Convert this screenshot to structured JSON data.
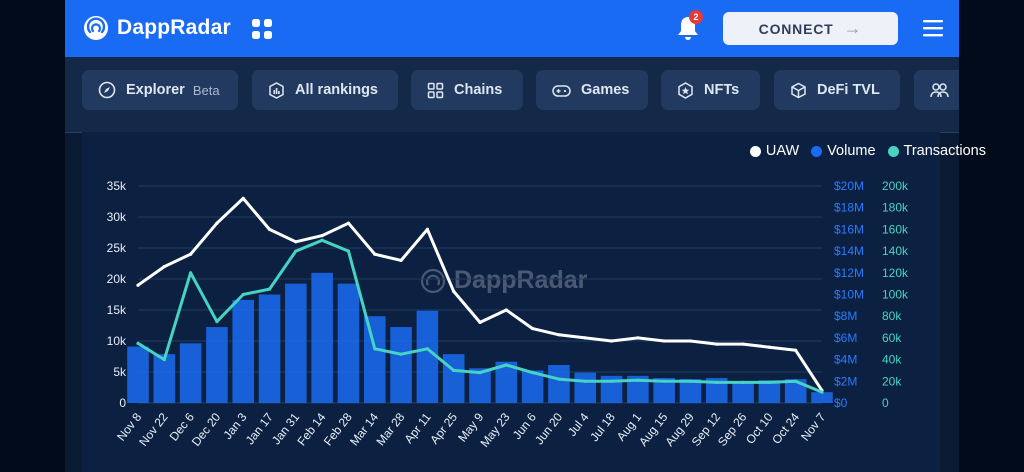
{
  "header": {
    "brand": "DappRadar",
    "notification_count": "2",
    "connect_label": "CONNECT",
    "colors": {
      "bar": "#1a6bf3",
      "connect_bg": "#eef2f8",
      "badge": "#e53a3a"
    }
  },
  "nav": {
    "items": [
      {
        "label": "Explorer",
        "tag": "Beta",
        "icon": "compass-icon"
      },
      {
        "label": "All rankings",
        "icon": "rankings-icon"
      },
      {
        "label": "Chains",
        "icon": "chains-icon"
      },
      {
        "label": "Games",
        "icon": "gamepad-icon"
      },
      {
        "label": "NFTs",
        "icon": "nft-icon"
      },
      {
        "label": "DeFi TVL",
        "icon": "cube-icon"
      },
      {
        "label": "",
        "icon": "people-icon"
      }
    ]
  },
  "chart_data": {
    "type": "line",
    "legend": {
      "placement": "top-right",
      "entries": [
        {
          "label": "UAW",
          "color": "#ffffff"
        },
        {
          "label": "Volume",
          "color": "#1a6bf3"
        },
        {
          "label": "Transactions",
          "color": "#46d3c3"
        }
      ]
    },
    "watermark": "DappRadar",
    "x_tick_labels": [
      "Nov 8",
      "Nov 22",
      "Dec 6",
      "Dec 20",
      "Jan 3",
      "Jan 17",
      "Jan 31",
      "Feb 14",
      "Feb 28",
      "Mar 14",
      "Mar 28",
      "Apr 11",
      "Apr 25",
      "May 9",
      "May 23",
      "Jun 6",
      "Jun 20",
      "Jul 4",
      "Jul 18",
      "Aug 1",
      "Aug 15",
      "Aug 29",
      "Sep 12",
      "Sep 26",
      "Oct 10",
      "Oct 24",
      "Nov 7"
    ],
    "axes": {
      "uaw": {
        "ylim": [
          0,
          35000
        ],
        "tick_labels": [
          "0",
          "5k",
          "10k",
          "15k",
          "20k",
          "25k",
          "30k",
          "35k"
        ],
        "color": "#e7eef9"
      },
      "volume": {
        "ylim": [
          0,
          20000000
        ],
        "tick_labels": [
          "$0",
          "$2M",
          "$4M",
          "$6M",
          "$8M",
          "$10M",
          "$12M",
          "$14M",
          "$16M",
          "$18M",
          "$20M"
        ],
        "color": "#2a7bff"
      },
      "transactions": {
        "ylim": [
          0,
          200000
        ],
        "tick_labels": [
          "0",
          "20k",
          "40k",
          "60k",
          "80k",
          "100k",
          "120k",
          "140k",
          "160k",
          "180k",
          "200k"
        ],
        "color": "#46d3c3"
      }
    },
    "grid": true,
    "series": [
      {
        "name": "UAW",
        "axis": "uaw",
        "color": "#ffffff",
        "x": [
          "Nov 8",
          "Nov 22",
          "Dec 6",
          "Dec 20",
          "Jan 3",
          "Jan 17",
          "Jan 31",
          "Feb 14",
          "Feb 28",
          "Mar 14",
          "Mar 28",
          "Apr 11",
          "Apr 25",
          "May 9",
          "May 23",
          "Jun 6",
          "Jun 20",
          "Jul 4",
          "Jul 18",
          "Aug 1",
          "Aug 15",
          "Aug 29",
          "Sep 12",
          "Sep 26",
          "Oct 10",
          "Oct 24",
          "Nov 7"
        ],
        "values": [
          19000,
          22000,
          24000,
          29000,
          33000,
          28000,
          26000,
          27000,
          29000,
          24000,
          23000,
          28000,
          18000,
          13000,
          15000,
          12000,
          11000,
          10500,
          10000,
          10500,
          10000,
          10000,
          9500,
          9500,
          9000,
          8500,
          2000
        ]
      },
      {
        "name": "Volume",
        "axis": "volume",
        "color": "#1a6bf3",
        "x": [
          "Nov 8",
          "Nov 22",
          "Dec 6",
          "Dec 20",
          "Jan 3",
          "Jan 17",
          "Jan 31",
          "Feb 14",
          "Feb 28",
          "Mar 14",
          "Mar 28",
          "Apr 11",
          "Apr 25",
          "May 9",
          "May 23",
          "Jun 6",
          "Jun 20",
          "Jul 4",
          "Jul 18",
          "Aug 1",
          "Aug 15",
          "Aug 29",
          "Sep 12",
          "Sep 26",
          "Oct 10",
          "Oct 24",
          "Nov 7"
        ],
        "values": [
          5200000,
          4500000,
          5500000,
          7000000,
          9500000,
          10000000,
          11000000,
          12000000,
          11000000,
          8000000,
          7000000,
          8500000,
          4500000,
          3200000,
          3800000,
          3000000,
          3500000,
          2800000,
          2500000,
          2500000,
          2300000,
          2200000,
          2300000,
          2000000,
          2100000,
          2200000,
          1000000
        ]
      },
      {
        "name": "Transactions",
        "axis": "transactions",
        "color": "#46d3c3",
        "x": [
          "Nov 8",
          "Nov 22",
          "Dec 6",
          "Dec 20",
          "Jan 3",
          "Jan 17",
          "Jan 31",
          "Feb 14",
          "Feb 28",
          "Mar 14",
          "Mar 28",
          "Apr 11",
          "Apr 25",
          "May 9",
          "May 23",
          "Jun 6",
          "Jun 20",
          "Jul 4",
          "Jul 18",
          "Aug 1",
          "Aug 15",
          "Aug 29",
          "Sep 12",
          "Sep 26",
          "Oct 10",
          "Oct 24",
          "Nov 7"
        ],
        "values": [
          55000,
          40000,
          120000,
          75000,
          100000,
          105000,
          140000,
          150000,
          140000,
          50000,
          45000,
          50000,
          30000,
          28000,
          35000,
          28000,
          22000,
          20000,
          20000,
          21000,
          20000,
          20000,
          19000,
          19000,
          19000,
          20000,
          10000
        ]
      }
    ]
  }
}
